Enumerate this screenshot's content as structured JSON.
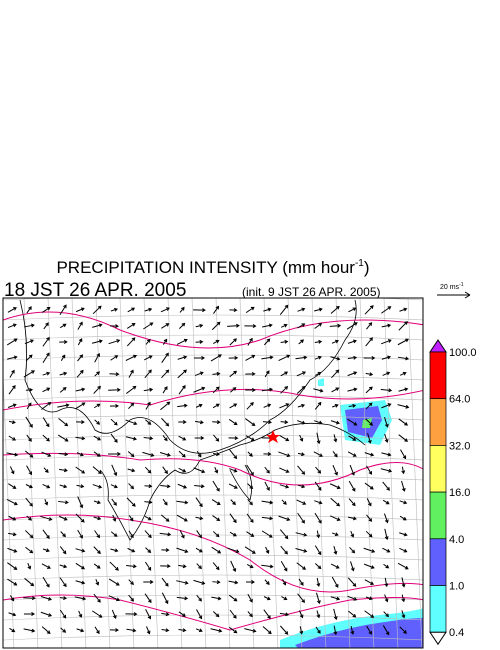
{
  "header": {
    "title": "PRECIPITATION INTENSITY (mm hour",
    "title_sup": "-1",
    "title_end": ")",
    "valid_time": "18 JST 26 APR. 2005",
    "init_time": "(init. 9 JST 26 APR. 2005)"
  },
  "wind_scale": {
    "label": "20 ms",
    "label_sup": "-1"
  },
  "colorbar": {
    "labels": [
      "100.0",
      "64.0",
      "32.0",
      "16.0",
      "4.0",
      "1.0",
      "0.4"
    ],
    "colors": [
      "#ff0000",
      "#ffa040",
      "#ffff60",
      "#60f060",
      "#6060ff",
      "#60ffff"
    ],
    "over_color": "#c020ff",
    "under_color": "#ffffff"
  }
}
